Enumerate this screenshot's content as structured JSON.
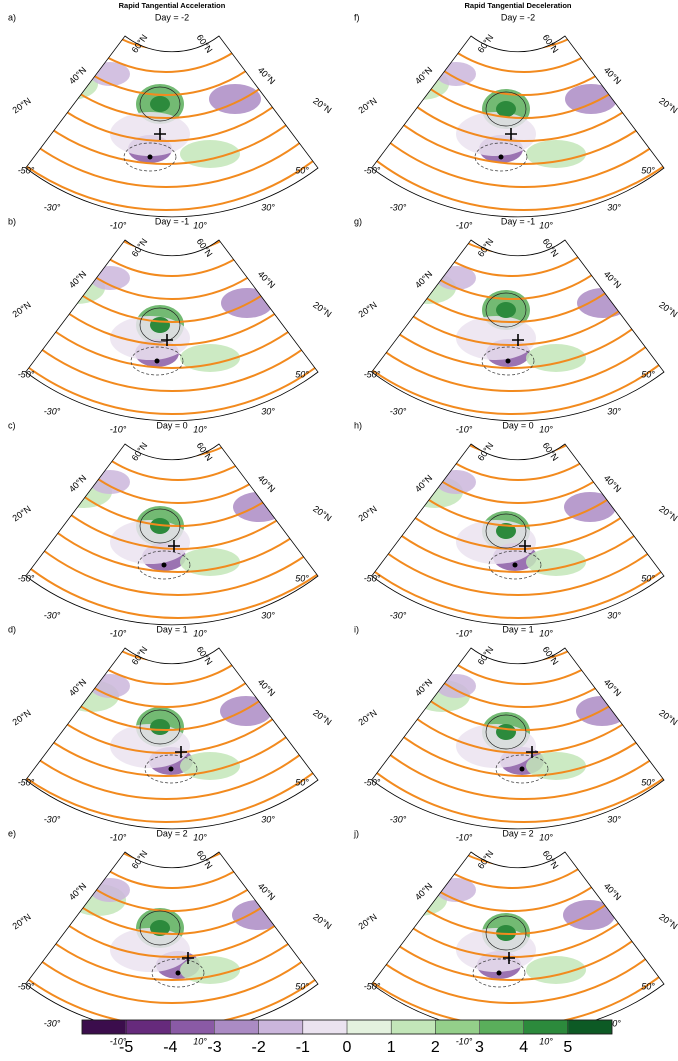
{
  "titles": [
    "Rapid Tangential Acceleration",
    "Rapid Tangential Deceleration"
  ],
  "panels": [
    {
      "label": "a)",
      "day": "Day = -2"
    },
    {
      "label": "b)",
      "day": "Day = -1"
    },
    {
      "label": "c)",
      "day": "Day = 0"
    },
    {
      "label": "d)",
      "day": "Day = 1"
    },
    {
      "label": "e)",
      "day": "Day = 2"
    },
    {
      "label": "f)",
      "day": "Day = -2"
    },
    {
      "label": "g)",
      "day": "Day = -1"
    },
    {
      "label": "h)",
      "day": "Day = 0"
    },
    {
      "label": "i)",
      "day": "Day = 1"
    },
    {
      "label": "j)",
      "day": "Day = 2"
    }
  ],
  "map_labels": {
    "lat": [
      "60°N",
      "40°N",
      "20°N"
    ],
    "lon": [
      "-50°",
      "-30°",
      "-10°",
      "10°",
      "30°",
      "50°"
    ]
  },
  "colorbar": {
    "colors": [
      "#3b0d4c",
      "#662a7c",
      "#8a5aa5",
      "#ab8bc4",
      "#cbb6dc",
      "#ebe3f0",
      "#e4f2df",
      "#c3e6b9",
      "#94cf8a",
      "#5aae5b",
      "#2c8a3c",
      "#0d5a25"
    ],
    "ticks": [
      -5,
      -4,
      -3,
      -2,
      -1,
      0,
      1,
      2,
      3,
      4,
      5
    ]
  }
}
